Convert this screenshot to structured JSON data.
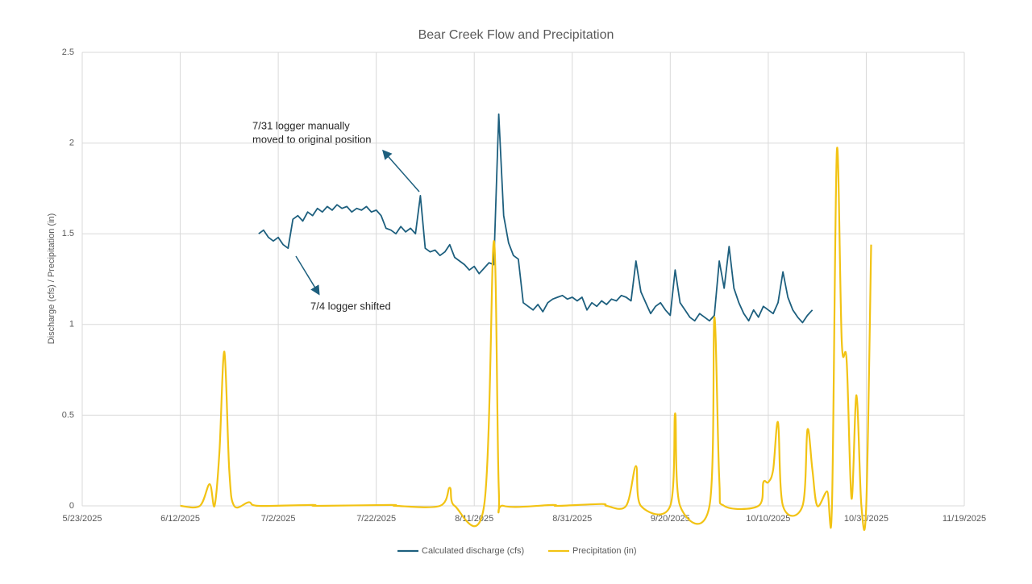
{
  "chart_data": {
    "type": "line",
    "title": "Bear Creek Flow and Precipitation",
    "y_label": "Discharge (cfs) / Precipitation (in)",
    "xlim": [
      "5/23/2025",
      "11/19/2025"
    ],
    "xticks": [
      "5/23/2025",
      "6/12/2025",
      "7/2/2025",
      "7/22/2025",
      "8/11/2025",
      "8/31/2025",
      "9/20/2025",
      "10/10/2025",
      "10/30/2025",
      "11/19/2025"
    ],
    "ylim": [
      0,
      2.5
    ],
    "yticks": [
      0,
      0.5,
      1,
      1.5,
      2,
      2.5
    ],
    "grid": true,
    "legend": "bottom",
    "annotations": [
      {
        "lines": [
          "7/31 logger manually",
          "moved to original position"
        ]
      },
      {
        "lines": [
          "7/4 logger shifted"
        ]
      }
    ],
    "series": [
      {
        "name": "Calculated discharge (cfs)",
        "color": "#1d5f7e",
        "smooth": false,
        "x": [
          "6/28/2025",
          "6/29/2025",
          "6/30/2025",
          "7/1/2025",
          "7/2/2025",
          "7/3/2025",
          "7/4/2025",
          "7/5/2025",
          "7/6/2025",
          "7/7/2025",
          "7/8/2025",
          "7/9/2025",
          "7/10/2025",
          "7/11/2025",
          "7/12/2025",
          "7/13/2025",
          "7/14/2025",
          "7/15/2025",
          "7/16/2025",
          "7/17/2025",
          "7/18/2025",
          "7/19/2025",
          "7/20/2025",
          "7/21/2025",
          "7/22/2025",
          "7/23/2025",
          "7/24/2025",
          "7/25/2025",
          "7/26/2025",
          "7/27/2025",
          "7/28/2025",
          "7/29/2025",
          "7/30/2025",
          "7/31/2025",
          "8/1/2025",
          "8/2/2025",
          "8/3/2025",
          "8/4/2025",
          "8/5/2025",
          "8/6/2025",
          "8/7/2025",
          "8/8/2025",
          "8/9/2025",
          "8/10/2025",
          "8/11/2025",
          "8/12/2025",
          "8/13/2025",
          "8/14/2025",
          "8/15/2025",
          "8/16/2025",
          "8/17/2025",
          "8/18/2025",
          "8/19/2025",
          "8/20/2025",
          "8/21/2025",
          "8/22/2025",
          "8/23/2025",
          "8/24/2025",
          "8/25/2025",
          "8/26/2025",
          "8/27/2025",
          "8/28/2025",
          "8/29/2025",
          "8/30/2025",
          "8/31/2025",
          "9/1/2025",
          "9/2/2025",
          "9/3/2025",
          "9/4/2025",
          "9/5/2025",
          "9/6/2025",
          "9/7/2025",
          "9/8/2025",
          "9/9/2025",
          "9/10/2025",
          "9/11/2025",
          "9/12/2025",
          "9/13/2025",
          "9/14/2025",
          "9/15/2025",
          "9/16/2025",
          "9/17/2025",
          "9/18/2025",
          "9/19/2025",
          "9/20/2025",
          "9/21/2025",
          "9/22/2025",
          "9/23/2025",
          "9/24/2025",
          "9/25/2025",
          "9/26/2025",
          "9/27/2025",
          "9/28/2025",
          "9/29/2025",
          "9/30/2025",
          "10/1/2025",
          "10/2/2025",
          "10/3/2025",
          "10/4/2025",
          "10/5/2025",
          "10/6/2025",
          "10/7/2025",
          "10/8/2025",
          "10/9/2025",
          "10/10/2025",
          "10/11/2025",
          "10/12/2025",
          "10/13/2025",
          "10/14/2025",
          "10/15/2025",
          "10/16/2025",
          "10/17/2025",
          "10/18/2025",
          "10/19/2025"
        ],
        "values": [
          1.5,
          1.52,
          1.48,
          1.46,
          1.48,
          1.44,
          1.42,
          1.58,
          1.6,
          1.57,
          1.62,
          1.6,
          1.64,
          1.62,
          1.65,
          1.63,
          1.66,
          1.64,
          1.65,
          1.62,
          1.64,
          1.63,
          1.65,
          1.62,
          1.63,
          1.6,
          1.53,
          1.52,
          1.5,
          1.54,
          1.51,
          1.53,
          1.5,
          1.71,
          1.42,
          1.4,
          1.41,
          1.38,
          1.4,
          1.44,
          1.37,
          1.35,
          1.33,
          1.3,
          1.32,
          1.28,
          1.31,
          1.34,
          1.33,
          2.16,
          1.6,
          1.45,
          1.38,
          1.36,
          1.12,
          1.1,
          1.08,
          1.11,
          1.07,
          1.12,
          1.14,
          1.15,
          1.16,
          1.14,
          1.15,
          1.13,
          1.15,
          1.08,
          1.12,
          1.1,
          1.13,
          1.11,
          1.14,
          1.13,
          1.16,
          1.15,
          1.13,
          1.35,
          1.18,
          1.12,
          1.06,
          1.1,
          1.12,
          1.08,
          1.05,
          1.3,
          1.12,
          1.08,
          1.04,
          1.02,
          1.06,
          1.04,
          1.02,
          1.05,
          1.35,
          1.2,
          1.43,
          1.2,
          1.12,
          1.06,
          1.02,
          1.08,
          1.04,
          1.1,
          1.08,
          1.06,
          1.12,
          1.29,
          1.15,
          1.08,
          1.04,
          1.01,
          1.05,
          1.08
        ]
      },
      {
        "name": "Precipitation (in)",
        "color": "#f2c314",
        "smooth": true,
        "x": [
          "6/12/2025",
          "6/16/2025",
          "6/18/2025",
          "6/19/2025",
          "6/20/2025",
          "6/21/2025",
          "6/22/2025",
          "6/23/2025",
          "6/26/2025",
          "6/28/2025",
          "7/9/2025",
          "7/10/2025",
          "7/25/2025",
          "7/26/2025",
          "8/4/2025",
          "8/6/2025",
          "8/7/2025",
          "8/13/2025",
          "8/15/2025",
          "8/16/2025",
          "8/17/2025",
          "8/27/2025",
          "8/28/2025",
          "9/6/2025",
          "9/7/2025",
          "9/11/2025",
          "9/13/2025",
          "9/14/2025",
          "9/20/2025",
          "9/21/2025",
          "9/22/2025",
          "9/28/2025",
          "9/29/2025",
          "9/30/2025",
          "10/1/2025",
          "10/8/2025",
          "10/9/2025",
          "10/10/2025",
          "10/11/2025",
          "10/12/2025",
          "10/13/2025",
          "10/17/2025",
          "10/18/2025",
          "10/19/2025",
          "10/20/2025",
          "10/22/2025",
          "10/23/2025",
          "10/24/2025",
          "10/25/2025",
          "10/26/2025",
          "10/27/2025",
          "10/28/2025",
          "10/29/2025",
          "10/30/2025",
          "10/31/2025"
        ],
        "values": [
          0,
          0,
          0.12,
          0,
          0.3,
          0.85,
          0.2,
          0,
          0.02,
          0,
          0.005,
          0,
          0.005,
          0,
          0,
          0.1,
          0,
          0,
          1.46,
          0.1,
          0,
          0.005,
          0,
          0.01,
          0,
          0,
          0.22,
          0,
          0,
          0.51,
          0,
          0,
          1.04,
          0.15,
          0,
          0,
          0.13,
          0.13,
          0.2,
          0.46,
          0,
          0,
          0.42,
          0.2,
          0,
          0.08,
          0,
          1.96,
          0.9,
          0.8,
          0.04,
          0.61,
          0,
          0,
          1.44
        ]
      }
    ]
  }
}
